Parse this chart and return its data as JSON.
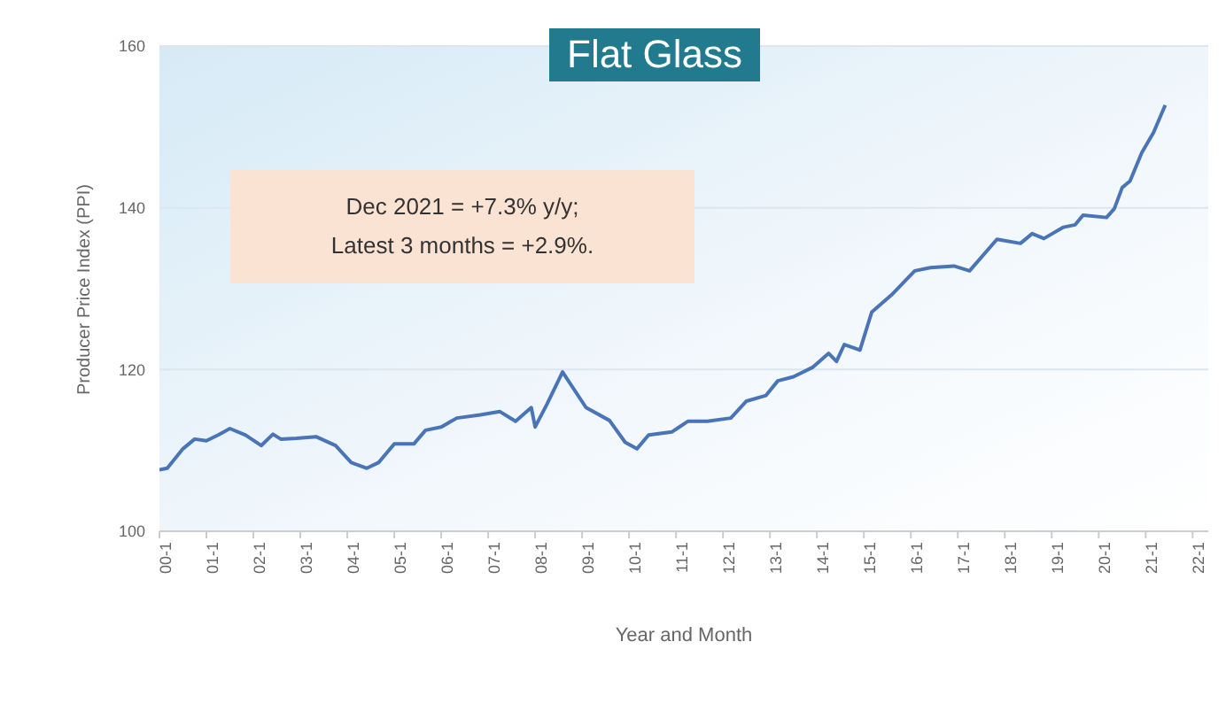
{
  "chart_data": {
    "type": "line",
    "title": "Flat Glass",
    "xlabel": "Year and Month",
    "ylabel": "Producer Price Index (PPI)",
    "annotations": [
      "Dec 2021 = +7.3% y/y;\nLatest 3 months = +2.9%."
    ],
    "x": [
      "2000-01",
      "2000-03",
      "2000-07",
      "2000-10",
      "2001-01",
      "2001-04",
      "2001-07",
      "2001-11",
      "2002-03",
      "2002-06",
      "2002-08",
      "2002-12",
      "2003-05",
      "2003-10",
      "2004-02",
      "2004-06",
      "2004-09",
      "2005-01",
      "2005-06",
      "2005-09",
      "2006-01",
      "2006-05",
      "2006-11",
      "2007-04",
      "2007-08",
      "2007-12",
      "2008-01",
      "2008-04",
      "2008-08",
      "2009-02",
      "2009-08",
      "2009-12",
      "2010-03",
      "2010-06",
      "2010-12",
      "2011-04",
      "2011-09",
      "2012-03",
      "2012-07",
      "2012-12",
      "2013-03",
      "2013-07",
      "2013-12",
      "2014-04",
      "2014-06",
      "2014-08",
      "2014-12",
      "2015-03",
      "2015-08",
      "2016-02",
      "2016-06",
      "2016-12",
      "2017-04",
      "2017-11",
      "2018-05",
      "2018-08",
      "2018-11",
      "2019-04",
      "2019-07",
      "2019-09",
      "2020-03",
      "2020-05",
      "2020-07",
      "2020-09",
      "2020-12",
      "2021-03",
      "2021-06"
    ],
    "series": [
      {
        "color": "#4a74b8",
        "values": [
          107.6,
          107.8,
          110.2,
          111.4,
          111.2,
          111.9,
          112.7,
          111.9,
          110.6,
          112.0,
          111.4,
          111.5,
          111.7,
          110.6,
          108.5,
          107.8,
          108.5,
          110.8,
          110.8,
          112.5,
          112.9,
          114.0,
          114.4,
          114.8,
          113.6,
          115.3,
          112.9,
          115.7,
          119.7,
          115.3,
          113.7,
          111.0,
          110.2,
          111.9,
          112.3,
          113.6,
          113.6,
          114.0,
          116.1,
          116.8,
          118.6,
          119.1,
          120.3,
          122.0,
          121.0,
          123.1,
          122.4,
          127.1,
          129.2,
          132.2,
          132.6,
          132.8,
          132.2,
          136.1,
          135.6,
          136.8,
          136.2,
          137.6,
          137.9,
          139.1,
          138.8,
          139.9,
          142.5,
          143.3,
          146.8,
          149.3,
          152.7
        ]
      }
    ],
    "xlim": [
      "2000-01",
      "2022-05"
    ],
    "xticks": [
      {
        "value": "2000-01",
        "label": "00-1"
      },
      {
        "value": "2001-01",
        "label": "01-1"
      },
      {
        "value": "2002-01",
        "label": "02-1"
      },
      {
        "value": "2003-01",
        "label": "03-1"
      },
      {
        "value": "2004-01",
        "label": "04-1"
      },
      {
        "value": "2005-01",
        "label": "05-1"
      },
      {
        "value": "2006-01",
        "label": "06-1"
      },
      {
        "value": "2007-01",
        "label": "07-1"
      },
      {
        "value": "2008-01",
        "label": "08-1"
      },
      {
        "value": "2009-01",
        "label": "09-1"
      },
      {
        "value": "2010-01",
        "label": "10-1"
      },
      {
        "value": "2011-01",
        "label": "11-1"
      },
      {
        "value": "2012-01",
        "label": "12-1"
      },
      {
        "value": "2013-01",
        "label": "13-1"
      },
      {
        "value": "2014-01",
        "label": "14-1"
      },
      {
        "value": "2015-01",
        "label": "15-1"
      },
      {
        "value": "2016-01",
        "label": "16-1"
      },
      {
        "value": "2017-01",
        "label": "17-1"
      },
      {
        "value": "2018-01",
        "label": "18-1"
      },
      {
        "value": "2019-01",
        "label": "19-1"
      },
      {
        "value": "2020-01",
        "label": "20-1"
      },
      {
        "value": "2021-01",
        "label": "21-1"
      },
      {
        "value": "2022-01",
        "label": "22-1"
      }
    ],
    "ylim": [
      100,
      160
    ],
    "yticks": [
      100,
      120,
      140,
      160
    ],
    "grid": "y",
    "legend": false,
    "marker": "none",
    "line_style": "solid"
  }
}
